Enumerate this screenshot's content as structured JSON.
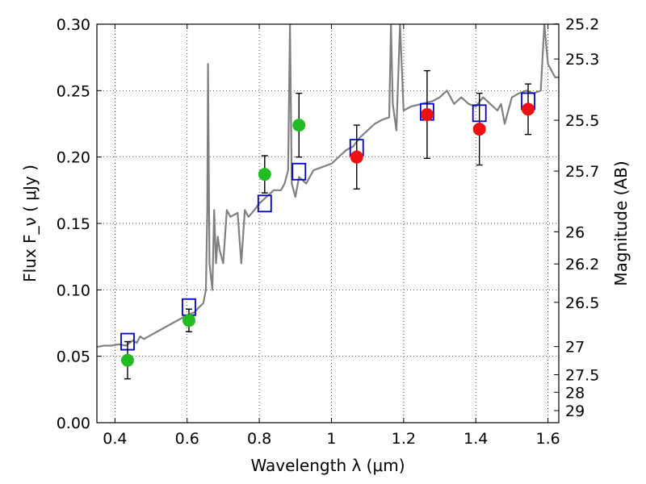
{
  "chart_data": {
    "type": "scatter",
    "xlabel": "Wavelength  λ (μm)",
    "ylabel": "Flux  F_ν  ( μJy )",
    "ylabel_right": "Magnitude (AB)",
    "xlim": [
      0.35,
      1.63
    ],
    "ylim": [
      0.0,
      0.3
    ],
    "grid": true,
    "x_ticks": [
      {
        "value": 0.4,
        "label": "0.4"
      },
      {
        "value": 0.6,
        "label": "0.6"
      },
      {
        "value": 0.8,
        "label": "0.8"
      },
      {
        "value": 1.0,
        "label": "1"
      },
      {
        "value": 1.2,
        "label": "1.2"
      },
      {
        "value": 1.4,
        "label": "1.4"
      },
      {
        "value": 1.6,
        "label": "1.6"
      }
    ],
    "y_ticks": [
      {
        "value": 0.0,
        "label": "0.00"
      },
      {
        "value": 0.05,
        "label": "0.05"
      },
      {
        "value": 0.1,
        "label": "0.10"
      },
      {
        "value": 0.15,
        "label": "0.15"
      },
      {
        "value": 0.2,
        "label": "0.20"
      },
      {
        "value": 0.25,
        "label": "0.25"
      },
      {
        "value": 0.3,
        "label": "0.30"
      }
    ],
    "mag_ticks": [
      {
        "label": "25.2",
        "flux": 0.3002
      },
      {
        "label": "25.3",
        "flux": 0.2738
      },
      {
        "label": "25.5",
        "flux": 0.2277
      },
      {
        "label": "25.7",
        "flux": 0.1894
      },
      {
        "label": "26",
        "flux": 0.1437
      },
      {
        "label": "26.2",
        "flux": 0.1195
      },
      {
        "label": "26.5",
        "flux": 0.0906
      },
      {
        "label": "27",
        "flux": 0.0573
      },
      {
        "label": "27.5",
        "flux": 0.0361
      },
      {
        "label": "28",
        "flux": 0.0229
      },
      {
        "label": "29",
        "flux": 0.0091
      }
    ],
    "series": [
      {
        "kind": "line",
        "color": "#808080",
        "points": [
          [
            0.35,
            0.057
          ],
          [
            0.37,
            0.058
          ],
          [
            0.39,
            0.058
          ],
          [
            0.41,
            0.059
          ],
          [
            0.43,
            0.058
          ],
          [
            0.45,
            0.062
          ],
          [
            0.46,
            0.06
          ],
          [
            0.47,
            0.065
          ],
          [
            0.48,
            0.063
          ],
          [
            0.5,
            0.066
          ],
          [
            0.52,
            0.069
          ],
          [
            0.54,
            0.072
          ],
          [
            0.56,
            0.075
          ],
          [
            0.58,
            0.078
          ],
          [
            0.6,
            0.081
          ],
          [
            0.62,
            0.083
          ],
          [
            0.63,
            0.086
          ],
          [
            0.645,
            0.09
          ],
          [
            0.652,
            0.1
          ],
          [
            0.656,
            0.16
          ],
          [
            0.658,
            0.27
          ],
          [
            0.662,
            0.12
          ],
          [
            0.67,
            0.1
          ],
          [
            0.675,
            0.16
          ],
          [
            0.68,
            0.12
          ],
          [
            0.685,
            0.14
          ],
          [
            0.69,
            0.13
          ],
          [
            0.7,
            0.12
          ],
          [
            0.71,
            0.16
          ],
          [
            0.72,
            0.155
          ],
          [
            0.74,
            0.158
          ],
          [
            0.75,
            0.12
          ],
          [
            0.76,
            0.16
          ],
          [
            0.77,
            0.155
          ],
          [
            0.78,
            0.158
          ],
          [
            0.8,
            0.165
          ],
          [
            0.82,
            0.17
          ],
          [
            0.84,
            0.175
          ],
          [
            0.86,
            0.175
          ],
          [
            0.87,
            0.18
          ],
          [
            0.88,
            0.19
          ],
          [
            0.885,
            0.3
          ],
          [
            0.89,
            0.18
          ],
          [
            0.9,
            0.17
          ],
          [
            0.91,
            0.185
          ],
          [
            0.93,
            0.18
          ],
          [
            0.95,
            0.19
          ],
          [
            0.97,
            0.192
          ],
          [
            1.0,
            0.195
          ],
          [
            1.02,
            0.2
          ],
          [
            1.04,
            0.205
          ],
          [
            1.06,
            0.208
          ],
          [
            1.08,
            0.215
          ],
          [
            1.1,
            0.22
          ],
          [
            1.12,
            0.225
          ],
          [
            1.14,
            0.228
          ],
          [
            1.16,
            0.23
          ],
          [
            1.165,
            0.3
          ],
          [
            1.17,
            0.24
          ],
          [
            1.18,
            0.22
          ],
          [
            1.19,
            0.3
          ],
          [
            1.2,
            0.235
          ],
          [
            1.22,
            0.238
          ],
          [
            1.25,
            0.24
          ],
          [
            1.28,
            0.242
          ],
          [
            1.3,
            0.245
          ],
          [
            1.32,
            0.25
          ],
          [
            1.34,
            0.24
          ],
          [
            1.36,
            0.245
          ],
          [
            1.38,
            0.24
          ],
          [
            1.4,
            0.238
          ],
          [
            1.42,
            0.245
          ],
          [
            1.44,
            0.24
          ],
          [
            1.46,
            0.235
          ],
          [
            1.47,
            0.24
          ],
          [
            1.48,
            0.225
          ],
          [
            1.5,
            0.245
          ],
          [
            1.52,
            0.248
          ],
          [
            1.54,
            0.25
          ],
          [
            1.56,
            0.248
          ],
          [
            1.58,
            0.25
          ],
          [
            1.59,
            0.3
          ],
          [
            1.6,
            0.27
          ],
          [
            1.62,
            0.26
          ],
          [
            1.63,
            0.26
          ]
        ]
      },
      {
        "kind": "model",
        "marker": "square",
        "color": "#0000cc",
        "points": [
          [
            0.435,
            0.061
          ],
          [
            0.605,
            0.087
          ],
          [
            0.815,
            0.165
          ],
          [
            0.91,
            0.189
          ],
          [
            1.07,
            0.207
          ],
          [
            1.265,
            0.234
          ],
          [
            1.41,
            0.233
          ],
          [
            1.545,
            0.242
          ]
        ]
      },
      {
        "kind": "observed",
        "marker": "circle",
        "color": "#22bb22",
        "points": [
          {
            "x": 0.435,
            "y": 0.047,
            "err": 0.014
          },
          {
            "x": 0.605,
            "y": 0.077,
            "err": 0.0085
          },
          {
            "x": 0.815,
            "y": 0.187,
            "err": 0.014
          },
          {
            "x": 0.91,
            "y": 0.224,
            "err": 0.024
          }
        ]
      },
      {
        "kind": "observed",
        "marker": "circle",
        "color": "#ee1111",
        "points": [
          {
            "x": 1.07,
            "y": 0.2,
            "err": 0.024
          },
          {
            "x": 1.265,
            "y": 0.232,
            "err": 0.033
          },
          {
            "x": 1.41,
            "y": 0.221,
            "err": 0.027
          },
          {
            "x": 1.545,
            "y": 0.236,
            "err": 0.019
          }
        ]
      }
    ]
  }
}
